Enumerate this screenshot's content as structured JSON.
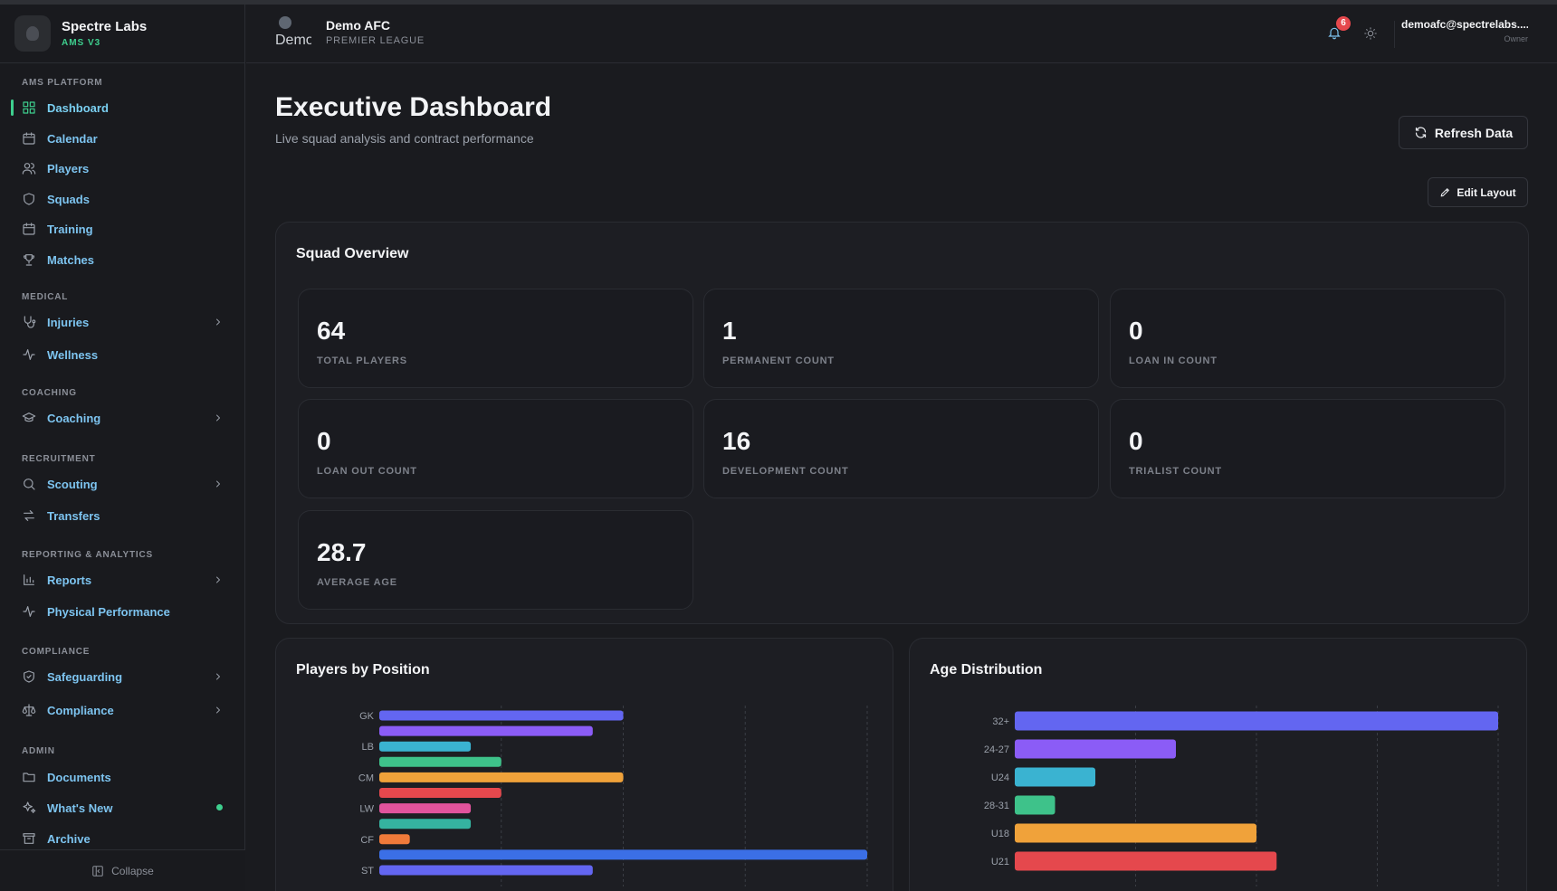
{
  "sidebar": {
    "brand_name": "Spectre Labs",
    "brand_version": "AMS V3",
    "sections": {
      "ams_platform": "AMS PLATFORM",
      "medical": "MEDICAL",
      "coaching": "COACHING",
      "recruitment": "RECRUITMENT",
      "reporting": "REPORTING & ANALYTICS",
      "compliance": "COMPLIANCE",
      "admin": "ADMIN"
    },
    "items": {
      "dashboard": "Dashboard",
      "calendar": "Calendar",
      "players": "Players",
      "squads": "Squads",
      "training": "Training",
      "matches": "Matches",
      "injuries": "Injuries",
      "wellness": "Wellness",
      "coaching": "Coaching",
      "scouting": "Scouting",
      "transfers": "Transfers",
      "reports": "Reports",
      "physical_performance": "Physical Performance",
      "safeguarding": "Safeguarding",
      "compliance": "Compliance",
      "documents": "Documents",
      "whats_new": "What's New",
      "archive": "Archive"
    },
    "collapse_label": "Collapse"
  },
  "header": {
    "club_logo_alt": "Demo",
    "club_name": "Demo AFC",
    "league": "PREMIER LEAGUE",
    "notification_count": "6",
    "user_email": "demoafc@spectrelabs....",
    "user_role": "Owner"
  },
  "page": {
    "title": "Executive Dashboard",
    "subtitle": "Live squad analysis and contract performance",
    "refresh_label": "Refresh Data",
    "edit_layout_label": "Edit Layout"
  },
  "squad_overview": {
    "title": "Squad Overview",
    "stats": [
      {
        "value": "64",
        "label": "TOTAL PLAYERS"
      },
      {
        "value": "1",
        "label": "PERMANENT COUNT"
      },
      {
        "value": "0",
        "label": "LOAN IN COUNT"
      },
      {
        "value": "0",
        "label": "LOAN OUT COUNT"
      },
      {
        "value": "16",
        "label": "DEVELOPMENT COUNT"
      },
      {
        "value": "0",
        "label": "TRIALIST COUNT"
      },
      {
        "value": "28.7",
        "label": "AVERAGE AGE"
      }
    ]
  },
  "chart_data": [
    {
      "type": "bar",
      "orientation": "horizontal",
      "title": "Players by Position",
      "categories_visible_labels": [
        "GK",
        "LB",
        "CM",
        "LW",
        "CF",
        "ST"
      ],
      "bars": [
        {
          "label": "GK",
          "value": 8,
          "color": "#6366f1"
        },
        {
          "label": "",
          "value": 7,
          "color": "#8b5cf6"
        },
        {
          "label": "LB",
          "value": 3,
          "color": "#3ab3d1"
        },
        {
          "label": "",
          "value": 4,
          "color": "#3ec28a"
        },
        {
          "label": "CM",
          "value": 8,
          "color": "#f0a23a"
        },
        {
          "label": "",
          "value": 4,
          "color": "#e5484d"
        },
        {
          "label": "LW",
          "value": 3,
          "color": "#e1539c"
        },
        {
          "label": "",
          "value": 3,
          "color": "#35b3a0"
        },
        {
          "label": "CF",
          "value": 1,
          "color": "#f07a3a"
        },
        {
          "label": "",
          "value": 16,
          "color": "#3b6fe6"
        },
        {
          "label": "ST",
          "value": 7,
          "color": "#6366f1"
        }
      ],
      "xticks": [
        "0",
        "4",
        "8",
        "12",
        "16"
      ],
      "xlim": [
        0,
        16
      ],
      "grid": true
    },
    {
      "type": "bar",
      "orientation": "horizontal",
      "title": "Age Distribution",
      "bars": [
        {
          "label": "32+",
          "value": 24,
          "color": "#6366f1"
        },
        {
          "label": "24-27",
          "value": 8,
          "color": "#8b5cf6"
        },
        {
          "label": "U24",
          "value": 4,
          "color": "#3ab3d1"
        },
        {
          "label": "28-31",
          "value": 2,
          "color": "#3ec28a"
        },
        {
          "label": "U18",
          "value": 12,
          "color": "#f0a23a"
        },
        {
          "label": "U21",
          "value": 13,
          "color": "#e5484d"
        }
      ],
      "xticks": [
        "0",
        "6",
        "12",
        "18",
        "24"
      ],
      "xlim": [
        0,
        24
      ],
      "grid": true
    }
  ]
}
